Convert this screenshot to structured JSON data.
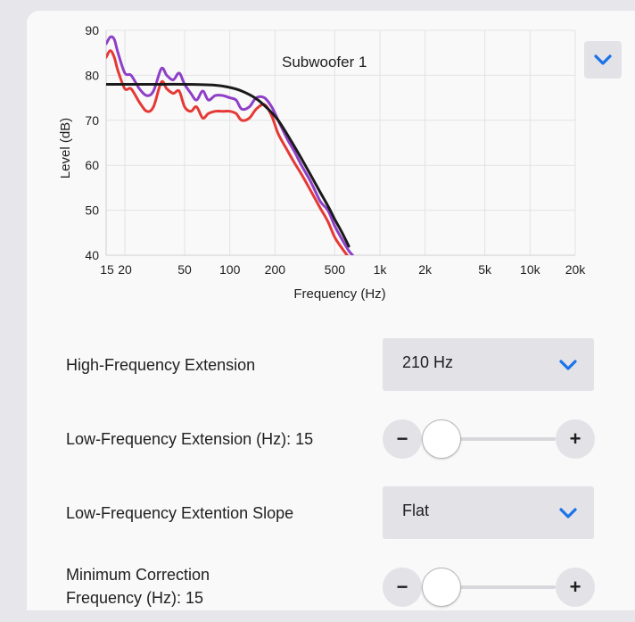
{
  "chart_data": {
    "type": "line",
    "title": "Subwoofer 1",
    "xlabel": "Frequency (Hz)",
    "ylabel": "Level (dB)",
    "x_scale": "log",
    "xlim": [
      15,
      20000
    ],
    "ylim": [
      40,
      90
    ],
    "grid": true,
    "x_ticks": [
      15,
      20,
      50,
      100,
      200,
      500,
      1000,
      2000,
      5000,
      10000,
      20000
    ],
    "x_tick_labels": [
      "15",
      "20",
      "50",
      "100",
      "200",
      "500",
      "1k",
      "2k",
      "5k",
      "10k",
      "20k"
    ],
    "y_ticks": [
      40,
      50,
      60,
      70,
      80,
      90
    ],
    "y_tick_labels": [
      "40",
      "50",
      "60",
      "70",
      "80",
      "90"
    ],
    "series": [
      {
        "color": "#8e3fc7",
        "x": [
          15,
          16,
          17,
          18,
          20,
          22,
          25,
          28,
          31,
          35,
          38,
          42,
          46,
          50,
          55,
          60,
          66,
          72,
          80,
          90,
          100,
          110,
          120,
          135,
          150,
          170,
          190,
          210,
          240,
          270,
          300,
          350,
          400,
          450,
          500,
          560,
          620,
          680
        ],
        "y": [
          87,
          88.5,
          88,
          85,
          80.5,
          80,
          77,
          75.5,
          76.5,
          81.5,
          80,
          79,
          80.5,
          78,
          76,
          74.5,
          76.5,
          74.5,
          75.5,
          75.5,
          75,
          74.5,
          72.5,
          73,
          75,
          75,
          73,
          70,
          66,
          63,
          60,
          56,
          52,
          50,
          46.5,
          43.5,
          41,
          39.5
        ]
      },
      {
        "color": "#e53935",
        "x": [
          15,
          16,
          17,
          18,
          20,
          22,
          25,
          28,
          31,
          35,
          38,
          42,
          46,
          50,
          55,
          60,
          66,
          72,
          80,
          90,
          100,
          110,
          120,
          135,
          150,
          170,
          190,
          210,
          240,
          270,
          300,
          350,
          400,
          450,
          500,
          560,
          620
        ],
        "y": [
          84,
          85.5,
          84,
          81,
          77,
          77,
          74,
          72,
          73,
          78.5,
          77,
          76,
          76.5,
          73,
          72,
          73,
          70.5,
          71.5,
          72,
          72,
          72,
          71.5,
          70,
          70.5,
          72.5,
          73.5,
          71,
          67,
          63.5,
          60.5,
          58,
          54,
          50.5,
          47.5,
          44,
          41.5,
          39.5
        ]
      },
      {
        "color": "#1a1a1a",
        "x": [
          15,
          20,
          30,
          50,
          80,
          100,
          120,
          150,
          180,
          210,
          250,
          300,
          350,
          400,
          450,
          500,
          560,
          620
        ],
        "y": [
          78,
          78,
          78,
          78,
          77.8,
          77.3,
          76.5,
          74.8,
          72.5,
          70,
          66,
          61.5,
          57.5,
          54,
          51,
          48,
          45,
          42
        ]
      }
    ]
  },
  "controls": {
    "expand_icon": "chevron-down-icon",
    "hf_extension": {
      "label": "High-Frequency Extension",
      "value": "210 Hz"
    },
    "lf_extension": {
      "label": "Low-Frequency Extension (Hz): 15",
      "minus": "−",
      "plus": "+",
      "value_fraction": 0
    },
    "lf_slope": {
      "label": "Low-Frequency Extention Slope",
      "value": "Flat"
    },
    "min_correction": {
      "label_line1": "Minimum Correction",
      "label_line2": "Frequency (Hz): 15",
      "minus": "−",
      "plus": "+",
      "value_fraction": 0
    }
  },
  "colors": {
    "accent": "#1a73e8",
    "control_bg": "#e2e2e7",
    "panel_bg": "#f9f9f9"
  }
}
